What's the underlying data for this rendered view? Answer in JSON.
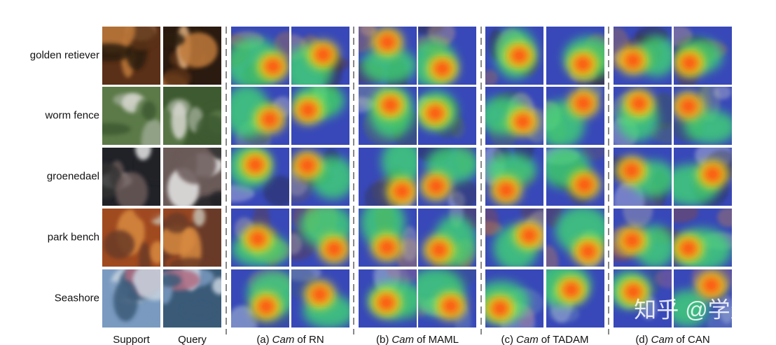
{
  "row_labels": [
    "golden retiever",
    "worm fence",
    "groenedael",
    "park bench",
    "Seashore"
  ],
  "image_labels": [
    "Support",
    "Query"
  ],
  "method_labels": [
    {
      "index": "(a)",
      "cam": "Cam",
      "method": "of RN"
    },
    {
      "index": "(b)",
      "cam": "Cam",
      "method": "of MAML"
    },
    {
      "index": "(c)",
      "cam": "Cam",
      "method": "of TADAM"
    },
    {
      "index": "(d)",
      "cam": "Cam",
      "method": "of CAN"
    }
  ],
  "watermark": "知乎 @学生"
}
